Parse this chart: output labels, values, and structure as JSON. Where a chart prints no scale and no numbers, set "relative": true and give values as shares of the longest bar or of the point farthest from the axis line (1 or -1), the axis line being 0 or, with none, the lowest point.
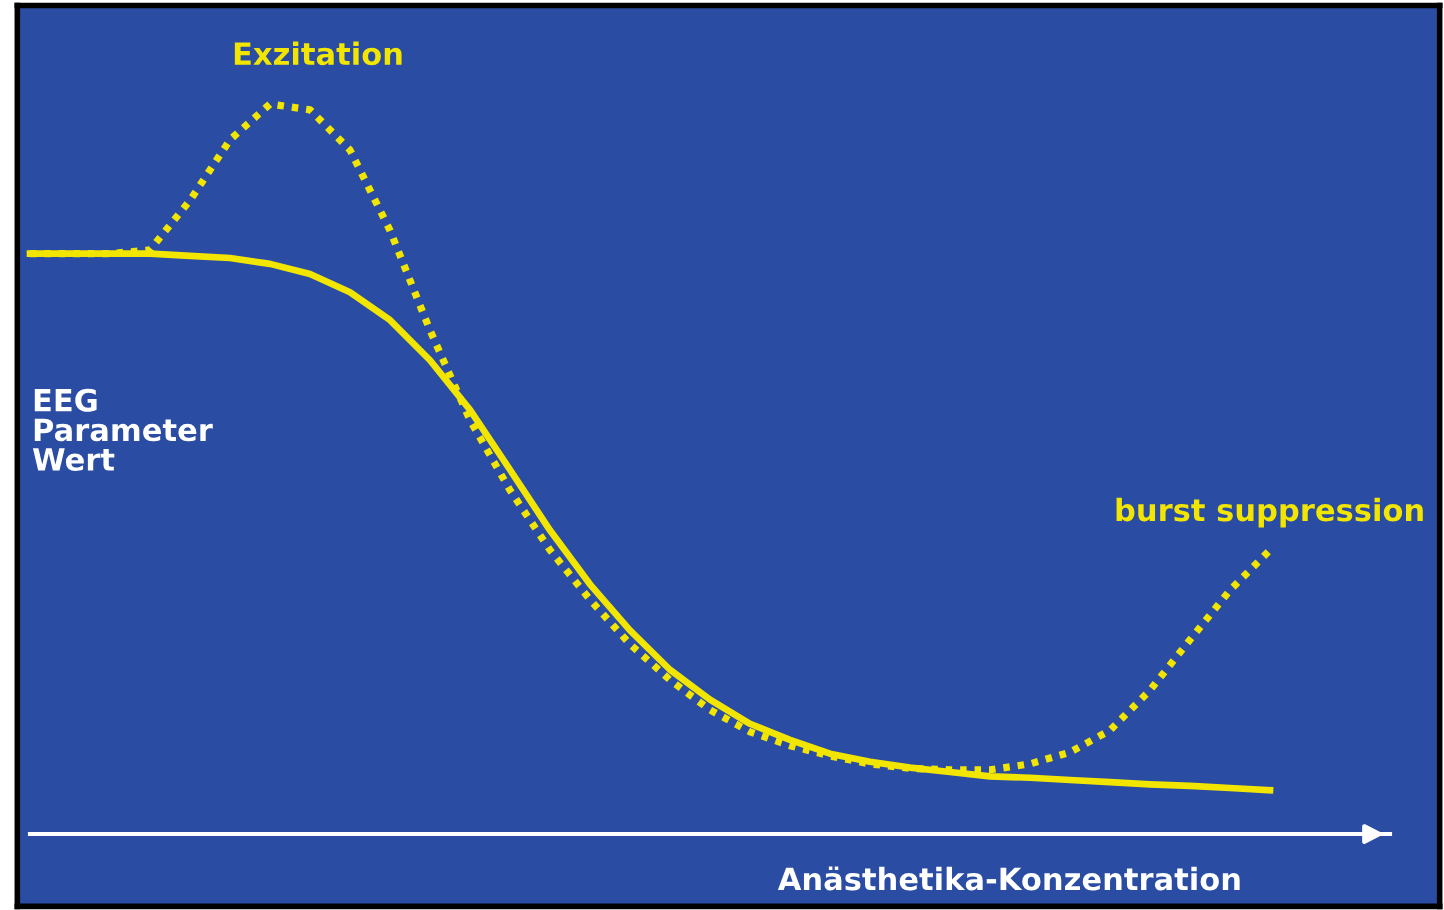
{
  "chart_data": {
    "type": "line",
    "relative": true,
    "xlabel": "Anästhetika-Konzentration",
    "ylabel": "EEG\nParameter\nWert",
    "annotations": [
      "Exzitation",
      "burst suppression"
    ],
    "categories": [
      null,
      null,
      null,
      null,
      null,
      null,
      null,
      null,
      null,
      null,
      null,
      null,
      null,
      null,
      null,
      null,
      null,
      null,
      null,
      null,
      null,
      null,
      null,
      null,
      null,
      null,
      null,
      null,
      null,
      null,
      null,
      null
    ],
    "series": [
      {
        "color": "#f2e600",
        "line_style": "solid",
        "values": [
          0.795,
          0.795,
          0.795,
          0.795,
          0.792,
          0.789,
          0.781,
          0.767,
          0.742,
          0.704,
          0.649,
          0.581,
          0.499,
          0.416,
          0.342,
          0.279,
          0.225,
          0.184,
          0.151,
          0.129,
          0.11,
          0.099,
          0.091,
          0.085,
          0.079,
          0.077,
          0.074,
          0.071,
          0.068,
          0.066,
          0.063,
          0.06
        ]
      },
      {
        "color": "#f2e600",
        "line_style": "dotted",
        "values": [
          0.795,
          0.795,
          0.795,
          0.8,
          0.868,
          0.951,
          1.0,
          0.992,
          0.937,
          0.827,
          0.69,
          0.567,
          0.471,
          0.389,
          0.321,
          0.26,
          0.211,
          0.17,
          0.14,
          0.121,
          0.107,
          0.096,
          0.09,
          0.088,
          0.088,
          0.096,
          0.112,
          0.142,
          0.197,
          0.266,
          0.334,
          0.389
        ]
      }
    ],
    "legend": false
  }
}
